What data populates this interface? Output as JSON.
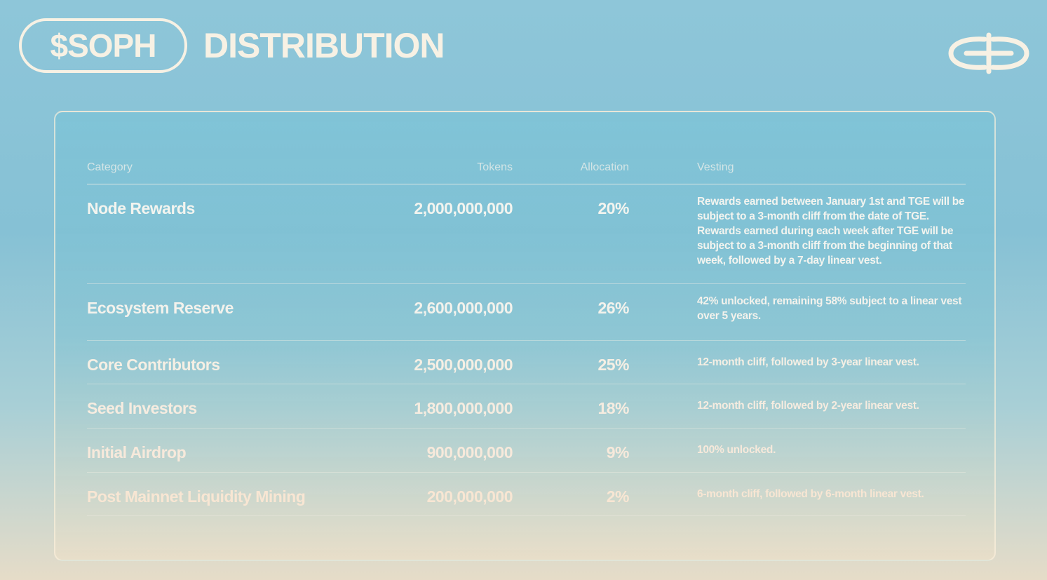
{
  "header": {
    "badge": "$SOPH",
    "title": "DISTRIBUTION"
  },
  "table": {
    "columns": [
      "Category",
      "Tokens",
      "Allocation",
      "Vesting"
    ],
    "rows": [
      [
        "Node Rewards",
        "2,000,000,000",
        "20%",
        "Rewards earned between January 1st and TGE will be subject to a 3-month cliff from the date of TGE. Rewards earned during each week after TGE will be subject to a 3-month cliff from the beginning of that week, followed by a 7-day linear vest."
      ],
      [
        "Ecosystem Reserve",
        "2,600,000,000",
        "26%",
        "42% unlocked, remaining 58% subject to a linear vest over 5 years."
      ],
      [
        "Core Contributors",
        "2,500,000,000",
        "25%",
        "12-month cliff, followed by 3-year linear vest."
      ],
      [
        "Seed Investors",
        "1,800,000,000",
        "18%",
        "12-month cliff, followed by 2-year linear vest."
      ],
      [
        "Initial Airdrop",
        "900,000,000",
        "9%",
        "100% unlocked."
      ],
      [
        "Post Mainnet Liquidity Mining",
        "200,000,000",
        "2%",
        "6-month cliff, followed by 6-month linear vest."
      ]
    ]
  }
}
